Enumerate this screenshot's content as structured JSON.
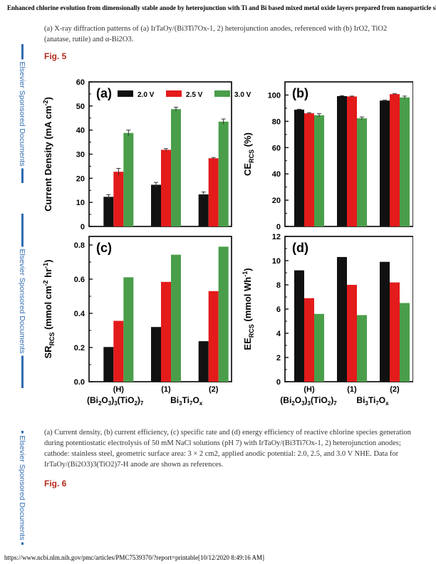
{
  "header": "Enhanced chlorine evolution from dimensionally stable anode by heterojunction with Ti and Bi based mixed metal oxide layers prepared from nanoparticle slurry",
  "caption_top": "(a) X-ray diffraction patterns of (a) IrTaOy/(Bi3Ti7Ox-1, 2) heterojunction anodes, referenced with (b) IrO2, TiO2 (anatase, rutile) and α-Bi2O3.",
  "fig5_label": "Fig. 5",
  "fig6_label": "Fig. 6",
  "side_text": "Elsevier Sponsored Documents",
  "caption_bottom": "(a) Current density, (b) current efficiency, (c) specific rate and (d) energy efficiency of reactive chlorine species generation during potentiostatic electrolysis of 50 mM NaCl solutions (pH 7) with IrTaOy/(Bi3Ti7Ox-1, 2) heterojunction anodes; cathode: stainless steel, geometric surface area: 3 × 2 cm2, applied anodic potential: 2.0, 2.5, and 3.0 V NHE. Data for IrTaOy/(Bi2O3)3(TiO2)7-H anode are shown as references.",
  "footer": "https://www.ncbi.nlm.nih.gov/pmc/articles/PMC7539370/?report=printable[10/12/2020 8:49:16 AM]",
  "colors": {
    "v20": "#111111",
    "v25": "#e31b1b",
    "v30": "#4a9e4a",
    "side": "#2f6bb0",
    "figlabel": "#b52b1e"
  },
  "chart_data": {
    "type": "bar",
    "categories": [
      "(H)",
      "(1)",
      "(2)"
    ],
    "group_labels": [
      "(Bi2O3)3(TiO2)7",
      "Bi3Ti7Ox"
    ],
    "legend": [
      "2.0 V",
      "2.5 V",
      "3.0 V"
    ],
    "panels": [
      {
        "label": "(a)",
        "ylabel": "Current Density (mA cm-2)",
        "ylim": [
          0,
          60
        ],
        "ticks": [
          "0",
          "10",
          "20",
          "30",
          "40",
          "50",
          "60"
        ],
        "series": [
          {
            "name": "2.0 V",
            "values": [
              12.3,
              17.3,
              13.3
            ],
            "errors": [
              0.9,
              1.0,
              1.0
            ]
          },
          {
            "name": "2.5 V",
            "values": [
              22.7,
              31.8,
              28.3
            ],
            "errors": [
              1.4,
              0.5,
              0.3
            ]
          },
          {
            "name": "3.0 V",
            "values": [
              38.8,
              48.7,
              43.5
            ],
            "errors": [
              1.2,
              0.8,
              1.1
            ]
          }
        ]
      },
      {
        "label": "(b)",
        "ylabel": "CE RCS (%)",
        "ylim": [
          0,
          110
        ],
        "ticks": [
          "0",
          "20",
          "40",
          "60",
          "80",
          "100"
        ],
        "series": [
          {
            "name": "2.0 V",
            "values": [
              88.9,
              99.2,
              95.8
            ],
            "errors": [
              0.3,
              0.3,
              0.3
            ]
          },
          {
            "name": "2.5 V",
            "values": [
              86.1,
              98.9,
              100.7
            ],
            "errors": [
              0.5,
              0.3,
              0.3
            ]
          },
          {
            "name": "3.0 V",
            "values": [
              84.6,
              82.3,
              98.2
            ],
            "errors": [
              1.2,
              1.0,
              1.0
            ]
          }
        ]
      },
      {
        "label": "(c)",
        "ylabel": "SR RCS (mmol cm-2 hr-1)",
        "ylim": [
          0,
          0.85
        ],
        "ticks": [
          "0.0",
          "0.2",
          "0.4",
          "0.6",
          "0.8"
        ],
        "series": [
          {
            "name": "2.0 V",
            "values": [
              0.203,
              0.32,
              0.237
            ]
          },
          {
            "name": "2.5 V",
            "values": [
              0.356,
              0.584,
              0.53
            ]
          },
          {
            "name": "3.0 V",
            "values": [
              0.611,
              0.743,
              0.79
            ]
          }
        ]
      },
      {
        "label": "(d)",
        "ylabel": "EE RCS (mmol Wh-1)",
        "ylim": [
          0,
          12
        ],
        "ticks": [
          "0",
          "2",
          "4",
          "6",
          "8",
          "10",
          "12"
        ],
        "series": [
          {
            "name": "2.0 V",
            "values": [
              9.2,
              10.3,
              9.9
            ]
          },
          {
            "name": "2.5 V",
            "values": [
              6.9,
              8.0,
              8.2
            ]
          },
          {
            "name": "3.0 V",
            "values": [
              5.6,
              5.5,
              6.5
            ]
          }
        ]
      }
    ]
  }
}
